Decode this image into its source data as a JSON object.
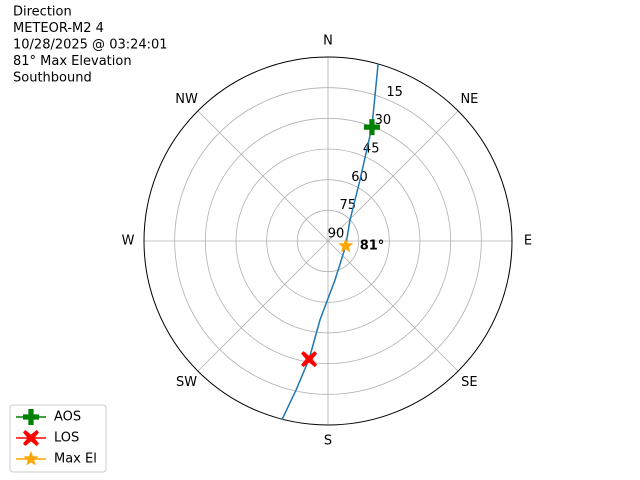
{
  "chart_data": {
    "type": "polar",
    "title_lines": [
      "Direction",
      "METEOR-M2 4",
      "10/28/2025 @ 03:24:01",
      "81° Max Elevation",
      "Southbound"
    ],
    "rlim": [
      90,
      0
    ],
    "rticks": [
      15,
      30,
      45,
      60,
      75,
      90
    ],
    "angle_ticks": [
      {
        "value": 0,
        "label": "N"
      },
      {
        "value": 45,
        "label": "NE"
      },
      {
        "value": 90,
        "label": "E"
      },
      {
        "value": 135,
        "label": "SE"
      },
      {
        "value": 180,
        "label": "S"
      },
      {
        "value": 225,
        "label": "SW"
      },
      {
        "value": 270,
        "label": "W"
      },
      {
        "value": 315,
        "label": "NW"
      }
    ],
    "grid": true,
    "track": {
      "color": "#1f77b4",
      "azimuth": [
        15.8,
        21.1,
        27.7,
        46.3,
        105.5,
        169.8,
        185.8,
        189.1,
        192.1,
        194.4
      ],
      "elevation": [
        0,
        30.3,
        56.3,
        75.1,
        81,
        70.6,
        51.2,
        31.5,
        15.5,
        0
      ]
    },
    "markers": [
      {
        "name": "AOS",
        "color": "#008000",
        "marker": "plus",
        "azimuth": 21.1,
        "elevation": 30.3
      },
      {
        "name": "LOS",
        "color": "#ff0000",
        "marker": "x",
        "azimuth": 189.1,
        "elevation": 31.5
      },
      {
        "name": "Max El",
        "color": "#ffa500",
        "marker": "star",
        "azimuth": 105.5,
        "elevation": 81,
        "value_label": "81°"
      }
    ],
    "legend": "lower left"
  }
}
